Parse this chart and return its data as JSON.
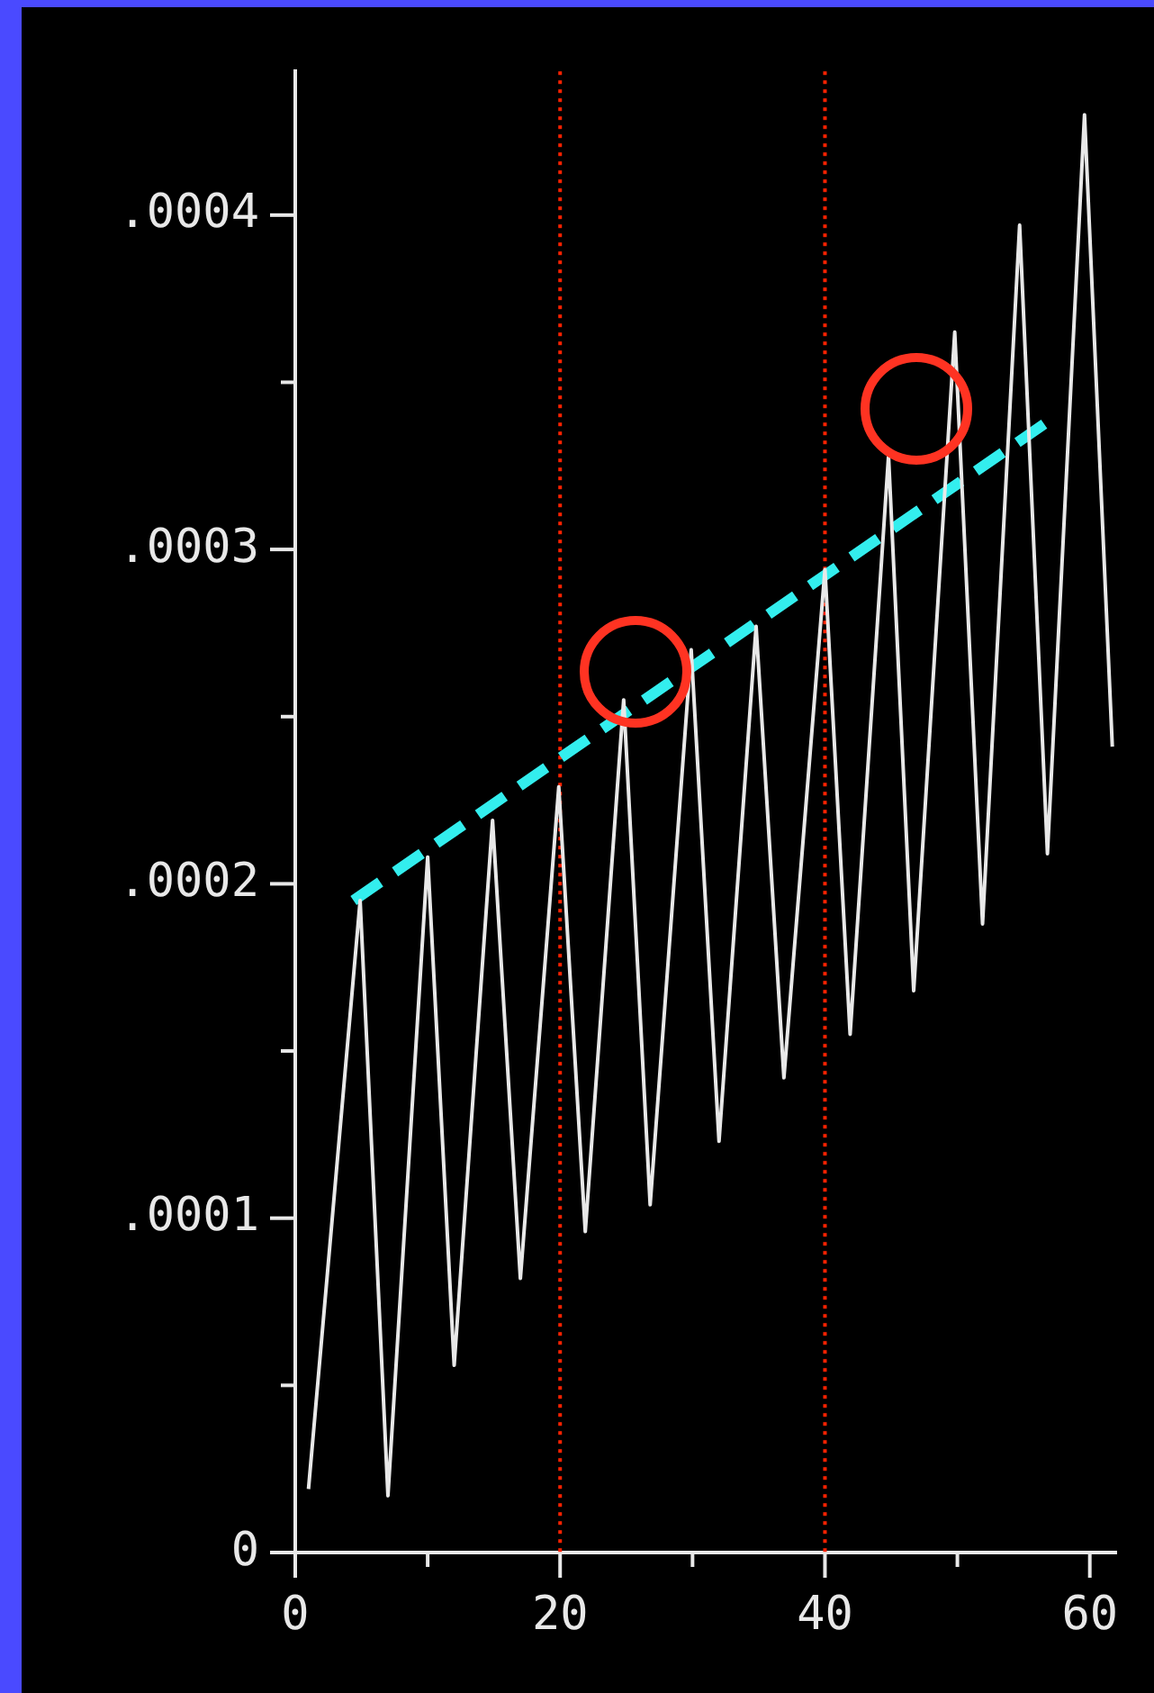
{
  "chart_data": {
    "type": "line",
    "xlim": [
      0,
      62
    ],
    "ylim": [
      0,
      0.000443
    ],
    "xticks": [
      0,
      {
        "value": 10,
        "label": null
      },
      20,
      {
        "value": 30,
        "label": null
      },
      40,
      {
        "value": 50,
        "label": null
      },
      60
    ],
    "yticks": [
      0,
      {
        "value": 5e-05,
        "label": null
      },
      {
        "value": 0.0001,
        "label": ".0001"
      },
      {
        "value": 0.00015,
        "label": null
      },
      {
        "value": 0.0002,
        "label": ".0002"
      },
      {
        "value": 0.00025,
        "label": null
      },
      {
        "value": 0.0003,
        "label": ".0003"
      },
      {
        "value": 0.00035,
        "label": null
      },
      {
        "value": 0.0004,
        "label": ".0004"
      }
    ],
    "grid": false,
    "legend": false,
    "marker": "none",
    "series": [
      {
        "color": "#e8e8e8",
        "line_style": "solid",
        "x": [
          1,
          4.9,
          7,
          10,
          12,
          14.9,
          17,
          19.9,
          21.9,
          24.8,
          26.8,
          29.9,
          32,
          34.8,
          36.9,
          40,
          41.9,
          44.8,
          46.7,
          49.8,
          51.9,
          54.7,
          56.8,
          59.6,
          61.7
        ],
        "values": [
          1.9e-05,
          0.000195,
          1.7e-05,
          0.000208,
          5.6e-05,
          0.000219,
          8.2e-05,
          0.000229,
          9.6e-05,
          0.000255,
          0.000104,
          0.00027,
          0.000123,
          0.000277,
          0.000142,
          0.000294,
          0.000155,
          0.000328,
          0.000168,
          0.000365,
          0.000188,
          0.000397,
          0.000209,
          0.00043,
          0.000241
        ]
      },
      {
        "color": "#33eeee",
        "line_style": "dashed",
        "x": [
          4.4,
          57.1
        ],
        "values": [
          0.000195,
          0.000339
        ]
      }
    ],
    "ref_lines": [
      {
        "axis": "x",
        "value": 20,
        "color": "#ff2200",
        "line_style": "dotted"
      },
      {
        "axis": "x",
        "value": 40,
        "color": "#ff2200",
        "line_style": "dotted"
      }
    ]
  }
}
